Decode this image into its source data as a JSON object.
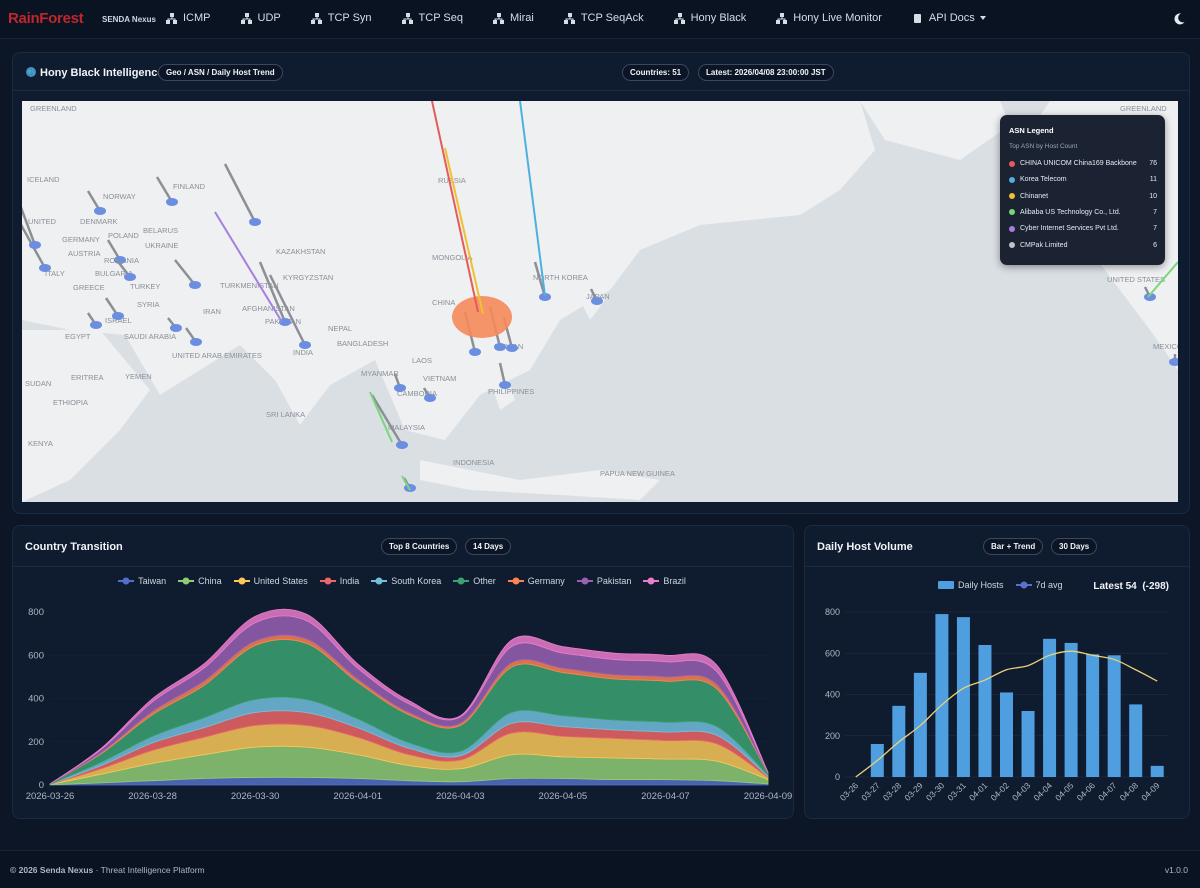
{
  "navbar": {
    "brand": "RainForest",
    "subtitle": "SENDA Nexus",
    "items": [
      "ICMP",
      "UDP",
      "TCP Syn",
      "TCP Seq",
      "Mirai",
      "TCP SeqAck",
      "Hony Black",
      "Hony Live Monitor",
      "API Docs"
    ]
  },
  "map_panel": {
    "title": "Hony Black Intelligence",
    "badge": "Geo / ASN / Daily Host Trend",
    "countries": "Countries: 51",
    "latest": "Latest: 2026/04/08 23:00:00 JST",
    "labels": [
      "GREENLAND",
      "ICELAND",
      "FINLAND",
      "NORWAY",
      "DENMARK",
      "UNITED",
      "GERMANY",
      "BELARUS",
      "POLAND",
      "AUSTRIA",
      "UKRAINE",
      "ROMANIA",
      "BULGARIA",
      "ITALY",
      "GREECE",
      "TURKEY",
      "SYRIA",
      "ISRAEL",
      "EGYPT",
      "SAUDI ARABIA",
      "UNITED ARAB EMIRATES",
      "IRAN",
      "RUSSIA",
      "KAZAKHSTAN",
      "KYRGYZSTAN",
      "TURKMENISTAN",
      "AFGHANISTAN",
      "PAKISTAN",
      "MONGOLIA",
      "CHINA",
      "NORTH KOREA",
      "JAPAN",
      "NEPAL",
      "BANGLADESH",
      "INDIA",
      "TAIWAN",
      "LAOS",
      "MYANMAR",
      "VIETNAM",
      "CAMBODIA",
      "PHILIPPINES",
      "MALAYSIA",
      "SRI LANKA",
      "INDONESIA",
      "PAPUA NEW GUINEA",
      "SUDAN",
      "ERITREA",
      "YEMEN",
      "ETHIOPIA",
      "KENYA",
      "UNITED STATES",
      "MEXICO",
      "GREENLAND"
    ],
    "asn_legend": {
      "title": "ASN Legend",
      "subtitle": "Top ASN by Host Count",
      "items": [
        {
          "name": "CHINA UNICOM China169 Backbone",
          "color": "#e35b5b",
          "count": 76
        },
        {
          "name": "Korea Telecom",
          "color": "#4db0e0",
          "count": 11
        },
        {
          "name": "Chinanet",
          "color": "#f0c030",
          "count": 10
        },
        {
          "name": "Alibaba US Technology Co., Ltd.",
          "color": "#7ad67a",
          "count": 7
        },
        {
          "name": "Cyber Internet Services Pvt Ltd.",
          "color": "#a77ee0",
          "count": 7
        },
        {
          "name": "CMPak Limited",
          "color": "#c0c4c8",
          "count": 6
        }
      ]
    }
  },
  "chart_data": [
    {
      "type": "area",
      "title": "Country Transition",
      "badges": [
        "Top 8 Countries",
        "14 Days"
      ],
      "categories": [
        "2026-03-26",
        null,
        "2026-03-28",
        null,
        "2026-03-30",
        null,
        "2026-04-01",
        null,
        "2026-04-03",
        null,
        "2026-04-05",
        null,
        "2026-04-07",
        null,
        "2026-04-09"
      ],
      "ylim": [
        0,
        800
      ],
      "yticks": [
        0,
        200,
        400,
        600,
        800
      ],
      "series": [
        {
          "name": "Taiwan",
          "color": "#5470c6",
          "values": [
            1,
            10,
            20,
            30,
            35,
            35,
            30,
            20,
            15,
            30,
            30,
            25,
            25,
            20,
            5
          ]
        },
        {
          "name": "China",
          "color": "#91cc75",
          "values": [
            1,
            40,
            80,
            110,
            140,
            140,
            110,
            70,
            60,
            110,
            100,
            100,
            95,
            90,
            20
          ]
        },
        {
          "name": "United States",
          "color": "#fac858",
          "values": [
            1,
            25,
            60,
            80,
            100,
            100,
            80,
            50,
            40,
            100,
            95,
            90,
            85,
            80,
            10
          ]
        },
        {
          "name": "India",
          "color": "#ee6666",
          "values": [
            0,
            15,
            35,
            45,
            60,
            60,
            45,
            30,
            20,
            45,
            45,
            40,
            40,
            40,
            5
          ]
        },
        {
          "name": "South Korea",
          "color": "#73c0de",
          "values": [
            0,
            15,
            30,
            45,
            60,
            60,
            40,
            25,
            20,
            50,
            50,
            45,
            45,
            40,
            5
          ]
        },
        {
          "name": "Other",
          "color": "#3ba272",
          "values": [
            2,
            40,
            100,
            150,
            250,
            260,
            170,
            130,
            120,
            210,
            200,
            190,
            190,
            175,
            10
          ]
        },
        {
          "name": "Germany",
          "color": "#fc8452",
          "values": [
            0,
            5,
            15,
            20,
            20,
            20,
            15,
            10,
            10,
            20,
            20,
            20,
            20,
            20,
            2
          ]
        },
        {
          "name": "Pakistan",
          "color": "#9a60b4",
          "values": [
            0,
            15,
            45,
            60,
            85,
            85,
            50,
            40,
            30,
            75,
            70,
            70,
            70,
            60,
            2
          ]
        },
        {
          "name": "Brazil",
          "color": "#ea7ccc",
          "values": [
            0,
            5,
            15,
            20,
            30,
            30,
            20,
            15,
            5,
            30,
            30,
            30,
            30,
            30,
            1
          ]
        }
      ]
    },
    {
      "type": "bar",
      "title": "Daily Host Volume",
      "badges": [
        "Bar + Trend",
        "30 Days"
      ],
      "latest": "Latest 54",
      "delta": "(-298)",
      "categories": [
        "03-26",
        "03-27",
        "03-28",
        "03-29",
        "03-30",
        "03-31",
        "04-01",
        "04-02",
        "04-03",
        "04-04",
        "04-05",
        "04-06",
        "04-07",
        "04-08",
        "04-09"
      ],
      "ylim": [
        0,
        800
      ],
      "yticks": [
        0,
        200,
        400,
        600,
        800
      ],
      "grid": true,
      "series": [
        {
          "name": "Daily Hosts",
          "color": "#4f9fe0",
          "values": [
            0,
            160,
            345,
            505,
            790,
            775,
            640,
            410,
            320,
            670,
            650,
            595,
            590,
            352,
            54
          ]
        },
        {
          "name": "7d avg",
          "color": "#e8d27a",
          "values": [
            0,
            80,
            170,
            250,
            350,
            430,
            470,
            520,
            540,
            590,
            610,
            590,
            570,
            520,
            465
          ]
        }
      ]
    }
  ],
  "footer": {
    "copyright": "© 2026 Senda Nexus",
    "tagline": " · Threat Intelligence Platform",
    "version": "v1.0.0"
  }
}
